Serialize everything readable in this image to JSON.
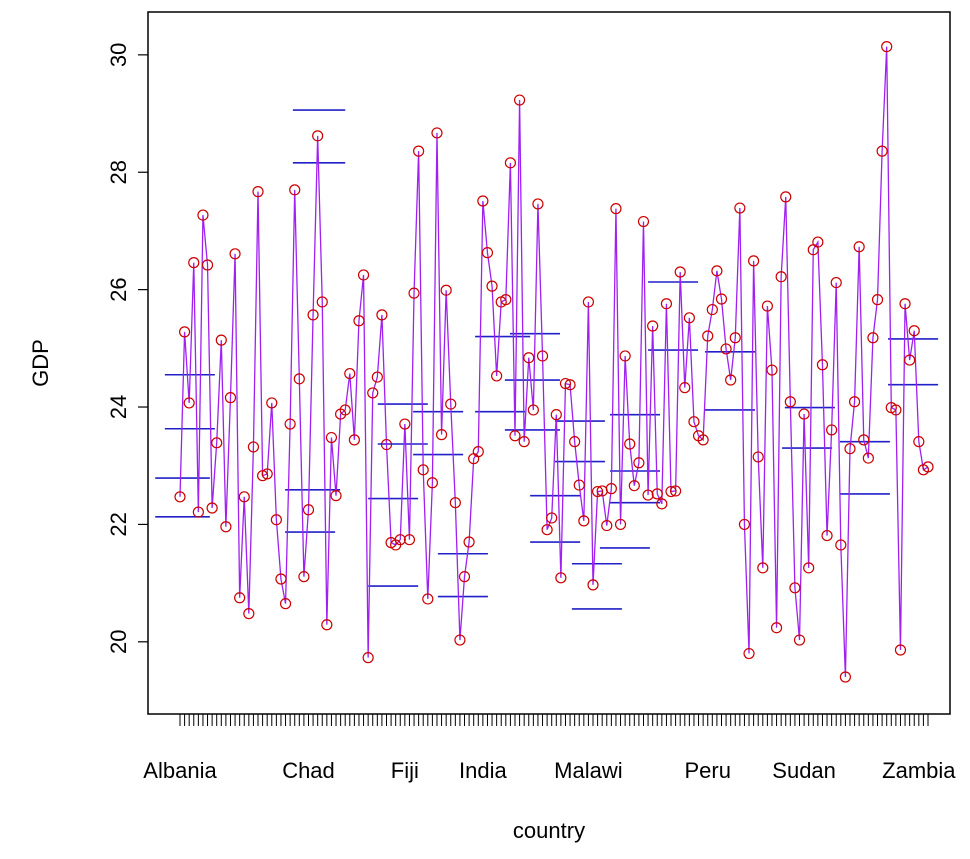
{
  "chart_data": {
    "type": "line",
    "x_label": "country",
    "y_label": "GDP",
    "categories": [
      "Albania",
      null,
      null,
      null,
      null,
      null,
      null,
      null,
      null,
      null,
      null,
      null,
      null,
      null,
      null,
      null,
      null,
      null,
      null,
      null,
      null,
      null,
      null,
      null,
      null,
      null,
      null,
      null,
      "Chad",
      null,
      null,
      null,
      null,
      null,
      null,
      null,
      null,
      null,
      null,
      null,
      null,
      null,
      null,
      null,
      null,
      null,
      null,
      null,
      null,
      "Fiji",
      null,
      null,
      null,
      null,
      null,
      null,
      null,
      null,
      null,
      null,
      null,
      null,
      null,
      null,
      null,
      null,
      "India",
      null,
      null,
      null,
      null,
      null,
      null,
      null,
      null,
      null,
      null,
      null,
      null,
      null,
      null,
      null,
      null,
      null,
      null,
      null,
      null,
      null,
      null,
      "Malawi",
      null,
      null,
      null,
      null,
      null,
      null,
      null,
      null,
      null,
      null,
      null,
      null,
      null,
      null,
      null,
      null,
      null,
      null,
      null,
      null,
      null,
      null,
      null,
      null,
      null,
      "Peru",
      null,
      null,
      null,
      null,
      null,
      null,
      null,
      null,
      null,
      null,
      null,
      null,
      null,
      null,
      null,
      null,
      null,
      null,
      null,
      null,
      "Sudan",
      null,
      null,
      null,
      null,
      null,
      null,
      null,
      null,
      null,
      null,
      null,
      null,
      null,
      null,
      null,
      null,
      null,
      null,
      null,
      null,
      null,
      null,
      null,
      null,
      "Zambia",
      null,
      null
    ],
    "series": [
      {
        "color": "#a020f0",
        "point_color": "#cc0000",
        "values": [
          22.47,
          25.28,
          24.07,
          26.46,
          22.21,
          27.27,
          26.42,
          22.28,
          23.39,
          25.14,
          21.96,
          24.16,
          26.61,
          20.75,
          22.47,
          20.48,
          23.32,
          27.67,
          22.83,
          22.86,
          24.07,
          22.08,
          21.07,
          20.65,
          23.71,
          27.7,
          24.48,
          21.11,
          22.25,
          25.57,
          28.62,
          25.79,
          20.29,
          23.48,
          22.49,
          23.88,
          23.95,
          24.57,
          23.44,
          25.47,
          26.25,
          19.73,
          24.24,
          24.51,
          25.57,
          23.36,
          21.69,
          21.65,
          21.74,
          23.71,
          21.74,
          25.94,
          28.36,
          22.93,
          20.73,
          22.71,
          28.67,
          23.53,
          25.99,
          24.05,
          22.37,
          20.03,
          21.11,
          21.7,
          23.12,
          23.24,
          27.51,
          26.63,
          26.06,
          24.53,
          25.79,
          25.83,
          28.16,
          23.51,
          29.23,
          23.41,
          24.84,
          23.95,
          27.46,
          24.87,
          21.91,
          22.11,
          23.87,
          21.09,
          24.4,
          24.38,
          23.41,
          22.67,
          22.06,
          25.79,
          20.97,
          22.56,
          22.57,
          21.98,
          22.61,
          27.38,
          22.0,
          24.87,
          23.37,
          22.66,
          23.05,
          27.16,
          22.5,
          25.38,
          22.52,
          22.35,
          25.76,
          22.56,
          22.57,
          26.3,
          24.33,
          25.52,
          23.75,
          23.51,
          23.44,
          25.21,
          25.66,
          26.32,
          25.84,
          24.99,
          24.46,
          25.18,
          27.39,
          22.0,
          19.8,
          26.49,
          23.15,
          21.26,
          25.72,
          24.63,
          20.24,
          26.22,
          27.58,
          24.09,
          20.92,
          20.03,
          23.88,
          21.26,
          26.68,
          26.81,
          24.72,
          21.81,
          23.61,
          26.12,
          21.65,
          19.4,
          23.29,
          24.09,
          26.73,
          23.44,
          23.13,
          25.18,
          25.83,
          28.36,
          30.14,
          23.99,
          23.95,
          19.86,
          25.76,
          24.8,
          25.3,
          23.41,
          22.93,
          22.98
        ]
      }
    ],
    "reference_lines": {
      "color": "#2020c8",
      "items": [
        {
          "from": -5.4,
          "to": 6.5,
          "value": 22.13
        },
        {
          "from": -5.4,
          "to": 6.5,
          "value": 22.79
        },
        {
          "from": -3.3,
          "to": 7.6,
          "value": 23.63
        },
        {
          "from": -3.3,
          "to": 7.6,
          "value": 24.55
        },
        {
          "from": 22.9,
          "to": 33.8,
          "value": 21.87
        },
        {
          "from": 22.9,
          "to": 34.9,
          "value": 22.59
        },
        {
          "from": 24.6,
          "to": 36,
          "value": 28.16
        },
        {
          "from": 24.6,
          "to": 36,
          "value": 29.06
        },
        {
          "from": 41,
          "to": 51.9,
          "value": 20.95
        },
        {
          "from": 41,
          "to": 51.9,
          "value": 22.44
        },
        {
          "from": 43.1,
          "to": 54,
          "value": 23.37
        },
        {
          "from": 43.1,
          "to": 54,
          "value": 24.05
        },
        {
          "from": 50.8,
          "to": 61.7,
          "value": 23.19
        },
        {
          "from": 50.8,
          "to": 61.7,
          "value": 23.92
        },
        {
          "from": 56.2,
          "to": 67.1,
          "value": 20.77
        },
        {
          "from": 56.2,
          "to": 67.1,
          "value": 21.5
        },
        {
          "from": 64.3,
          "to": 75.2,
          "value": 23.92
        },
        {
          "from": 64.3,
          "to": 76.3,
          "value": 25.2
        },
        {
          "from": 70.8,
          "to": 82.8,
          "value": 23.61
        },
        {
          "from": 70.8,
          "to": 82.8,
          "value": 24.46
        },
        {
          "from": 71.9,
          "to": 82.8,
          "value": 25.25
        },
        {
          "from": 76.3,
          "to": 87.2,
          "value": 21.7
        },
        {
          "from": 76.3,
          "to": 87.2,
          "value": 22.49
        },
        {
          "from": 81.7,
          "to": 92.6,
          "value": 23.07
        },
        {
          "from": 81.7,
          "to": 92.6,
          "value": 23.76
        },
        {
          "from": 85.4,
          "to": 96.3,
          "value": 21.33
        },
        {
          "from": 85.4,
          "to": 96.3,
          "value": 20.56
        },
        {
          "from": 91.5,
          "to": 102.4,
          "value": 21.6
        },
        {
          "from": 93.7,
          "to": 104.6,
          "value": 22.37
        },
        {
          "from": 93.7,
          "to": 104.6,
          "value": 22.91
        },
        {
          "from": 93.7,
          "to": 104.6,
          "value": 23.87
        },
        {
          "from": 102,
          "to": 112.9,
          "value": 24.97
        },
        {
          "from": 102,
          "to": 112.9,
          "value": 26.13
        },
        {
          "from": 114.4,
          "to": 125.3,
          "value": 23.95
        },
        {
          "from": 114.4,
          "to": 125.3,
          "value": 24.94
        },
        {
          "from": 131.2,
          "to": 142.1,
          "value": 23.3
        },
        {
          "from": 131.8,
          "to": 142.7,
          "value": 23.99
        },
        {
          "from": 143.8,
          "to": 154.7,
          "value": 22.52
        },
        {
          "from": 143.8,
          "to": 154.7,
          "value": 23.41
        },
        {
          "from": 154.3,
          "to": 165.2,
          "value": 24.38
        },
        {
          "from": 154.3,
          "to": 165.2,
          "value": 25.16
        }
      ]
    },
    "ylim": [
      18.77,
      30.73
    ],
    "yticks": [
      20,
      22,
      24,
      26,
      28,
      30
    ]
  }
}
